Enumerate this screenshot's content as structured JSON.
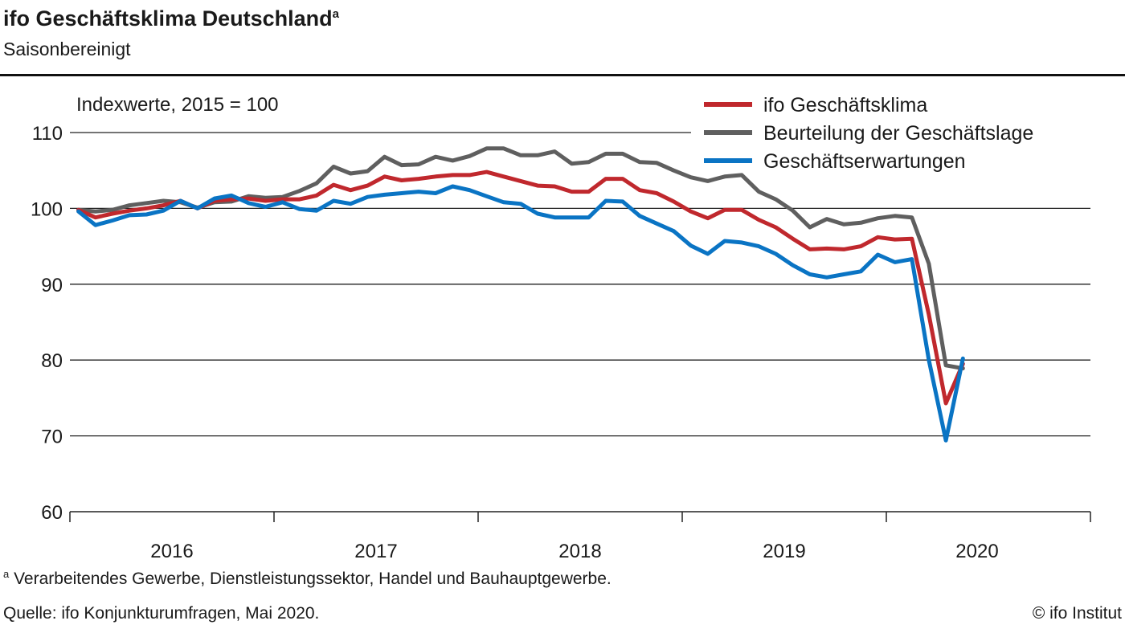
{
  "header": {
    "title": "ifo Geschäftsklima Deutschland",
    "title_sup": "a",
    "subtitle": "Saisonbereinigt"
  },
  "footer": {
    "note_marker": "a",
    "note": "Verarbeitendes  Gewerbe,  Dienstleistungssektor,  Handel und Bauhauptgewerbe.",
    "source": "Quelle:  ifo Konjunkturumfragen,  Mai 2020.",
    "copyright": "© ifo Institut"
  },
  "chart_data": {
    "type": "line",
    "ylabel": "Indexwerte, 2015 = 100",
    "ylim": [
      60,
      110
    ],
    "yticks": [
      "60",
      "70",
      "80",
      "90",
      "100",
      "110"
    ],
    "xlabels": [
      "2016",
      "2017",
      "2018",
      "2019",
      "2020"
    ],
    "x_start": "2016-01",
    "x_end": "2020-05",
    "grid": true,
    "legend_position": "top-right",
    "series": [
      {
        "name": "ifo Geschäftsklima",
        "color": "#c0282d",
        "values": [
          99.8,
          98.8,
          99.3,
          99.7,
          100.0,
          100.4,
          101.0,
          100.0,
          101.0,
          101.2,
          101.3,
          101.0,
          101.2,
          101.2,
          101.7,
          103.1,
          102.4,
          103.0,
          104.2,
          103.7,
          103.9,
          104.2,
          104.4,
          104.4,
          104.8,
          104.2,
          103.6,
          103.0,
          102.9,
          102.2,
          102.2,
          103.9,
          103.9,
          102.4,
          102.0,
          100.9,
          99.6,
          98.7,
          99.8,
          99.8,
          98.5,
          97.5,
          96.0,
          94.6,
          94.7,
          94.6,
          95.0,
          96.2,
          95.9,
          96.0,
          86.0,
          74.3,
          79.5
        ]
      },
      {
        "name": "Beurteilung der Geschäftslage",
        "color": "#5f5f5f",
        "values": [
          99.8,
          99.6,
          99.8,
          100.4,
          100.7,
          101.0,
          100.8,
          100.1,
          100.8,
          100.9,
          101.6,
          101.4,
          101.5,
          102.3,
          103.3,
          105.5,
          104.6,
          104.9,
          106.8,
          105.7,
          105.8,
          106.8,
          106.3,
          106.9,
          107.9,
          107.9,
          107.0,
          107.0,
          107.5,
          105.9,
          106.1,
          107.2,
          107.2,
          106.1,
          106.0,
          105.0,
          104.1,
          103.6,
          104.2,
          104.4,
          102.2,
          101.2,
          99.7,
          97.5,
          98.6,
          97.9,
          98.1,
          98.7,
          99.0,
          98.8,
          92.7,
          79.3,
          78.9
        ]
      },
      {
        "name": "Geschäftserwartungen",
        "color": "#0a74c4",
        "values": [
          99.6,
          97.8,
          98.4,
          99.1,
          99.2,
          99.7,
          101.0,
          100.0,
          101.3,
          101.7,
          100.7,
          100.2,
          100.8,
          99.9,
          99.7,
          101.0,
          100.6,
          101.5,
          101.8,
          102.0,
          102.2,
          102.0,
          102.9,
          102.4,
          101.6,
          100.8,
          100.6,
          99.3,
          98.8,
          98.8,
          98.8,
          101.0,
          100.9,
          99.0,
          98.0,
          97.0,
          95.1,
          94.0,
          95.7,
          95.5,
          95.0,
          94.0,
          92.5,
          91.3,
          90.9,
          91.3,
          91.7,
          93.9,
          92.9,
          93.3,
          80.0,
          69.4,
          80.2
        ]
      }
    ]
  }
}
